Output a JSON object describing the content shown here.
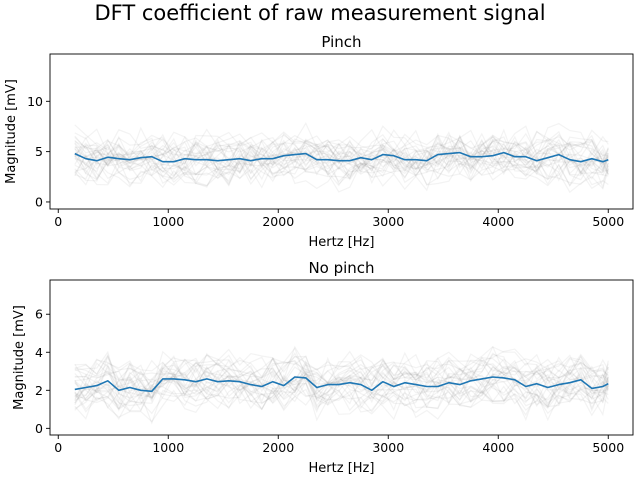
{
  "figure": {
    "suptitle": "DFT coefficient of raw measurement signal"
  },
  "colors": {
    "mean_line": "#1f77b4",
    "background_traces": "#7f7f7f",
    "axes": "#000000",
    "background": "#ffffff"
  },
  "chart_data": [
    {
      "type": "line",
      "title": "Pinch",
      "xlabel": "Hertz [Hz]",
      "ylabel": "Magnitude [mV]",
      "xlim": [
        -75,
        5225
      ],
      "ylim": [
        -0.7,
        14.7
      ],
      "xticks": [
        0,
        1000,
        2000,
        3000,
        4000,
        5000
      ],
      "xtick_labels": [
        "0",
        "1000",
        "2000",
        "3000",
        "4000",
        "5000"
      ],
      "yticks": [
        0,
        5,
        10
      ],
      "ytick_labels": [
        "0",
        "5",
        "10"
      ],
      "grid": false,
      "legend": "none",
      "x": [
        150,
        250,
        350,
        450,
        550,
        650,
        750,
        850,
        950,
        1050,
        1150,
        1250,
        1350,
        1450,
        1550,
        1650,
        1750,
        1850,
        1950,
        2050,
        2150,
        2250,
        2350,
        2450,
        2550,
        2650,
        2750,
        2850,
        2950,
        3050,
        3150,
        3250,
        3350,
        3450,
        3550,
        3650,
        3750,
        3850,
        3950,
        4050,
        4150,
        4250,
        4350,
        4450,
        4550,
        4650,
        4750,
        4850,
        4950,
        5000
      ],
      "series": [
        {
          "role": "mean",
          "values": [
            4.8,
            4.3,
            4.1,
            4.45,
            4.3,
            4.2,
            4.4,
            4.5,
            4.0,
            4.0,
            4.3,
            4.2,
            4.2,
            4.1,
            4.2,
            4.3,
            4.1,
            4.3,
            4.3,
            4.6,
            4.7,
            4.8,
            4.2,
            4.2,
            4.1,
            4.1,
            4.4,
            4.2,
            4.7,
            4.6,
            4.2,
            4.2,
            4.1,
            4.7,
            4.8,
            4.9,
            4.5,
            4.5,
            4.6,
            4.9,
            4.5,
            4.5,
            4.1,
            4.4,
            4.7,
            4.2,
            4.0,
            4.3,
            4.0,
            4.2
          ]
        }
      ]
    },
    {
      "type": "line",
      "title": "No pinch",
      "xlabel": "Hertz [Hz]",
      "ylabel": "Magnitude [mV]",
      "xlim": [
        -75,
        5225
      ],
      "ylim": [
        -0.35,
        7.8
      ],
      "xticks": [
        0,
        1000,
        2000,
        3000,
        4000,
        5000
      ],
      "xtick_labels": [
        "0",
        "1000",
        "2000",
        "3000",
        "4000",
        "5000"
      ],
      "yticks": [
        0,
        2,
        4,
        6
      ],
      "ytick_labels": [
        "0",
        "2",
        "4",
        "6"
      ],
      "grid": false,
      "legend": "none",
      "x": [
        150,
        250,
        350,
        450,
        550,
        650,
        750,
        850,
        950,
        1050,
        1150,
        1250,
        1350,
        1450,
        1550,
        1650,
        1750,
        1850,
        1950,
        2050,
        2150,
        2250,
        2350,
        2450,
        2550,
        2650,
        2750,
        2850,
        2950,
        3050,
        3150,
        3250,
        3350,
        3450,
        3550,
        3650,
        3750,
        3850,
        3950,
        4050,
        4150,
        4250,
        4350,
        4450,
        4550,
        4650,
        4750,
        4850,
        4950,
        5000
      ],
      "series": [
        {
          "role": "mean",
          "values": [
            2.05,
            2.15,
            2.25,
            2.5,
            2.0,
            2.15,
            2.0,
            1.95,
            2.6,
            2.6,
            2.55,
            2.45,
            2.6,
            2.45,
            2.5,
            2.45,
            2.3,
            2.2,
            2.45,
            2.25,
            2.7,
            2.65,
            2.15,
            2.3,
            2.3,
            2.4,
            2.3,
            2.0,
            2.45,
            2.2,
            2.4,
            2.3,
            2.2,
            2.2,
            2.4,
            2.3,
            2.5,
            2.6,
            2.7,
            2.65,
            2.55,
            2.2,
            2.35,
            2.15,
            2.3,
            2.4,
            2.55,
            2.1,
            2.2,
            2.35
          ]
        }
      ]
    }
  ]
}
